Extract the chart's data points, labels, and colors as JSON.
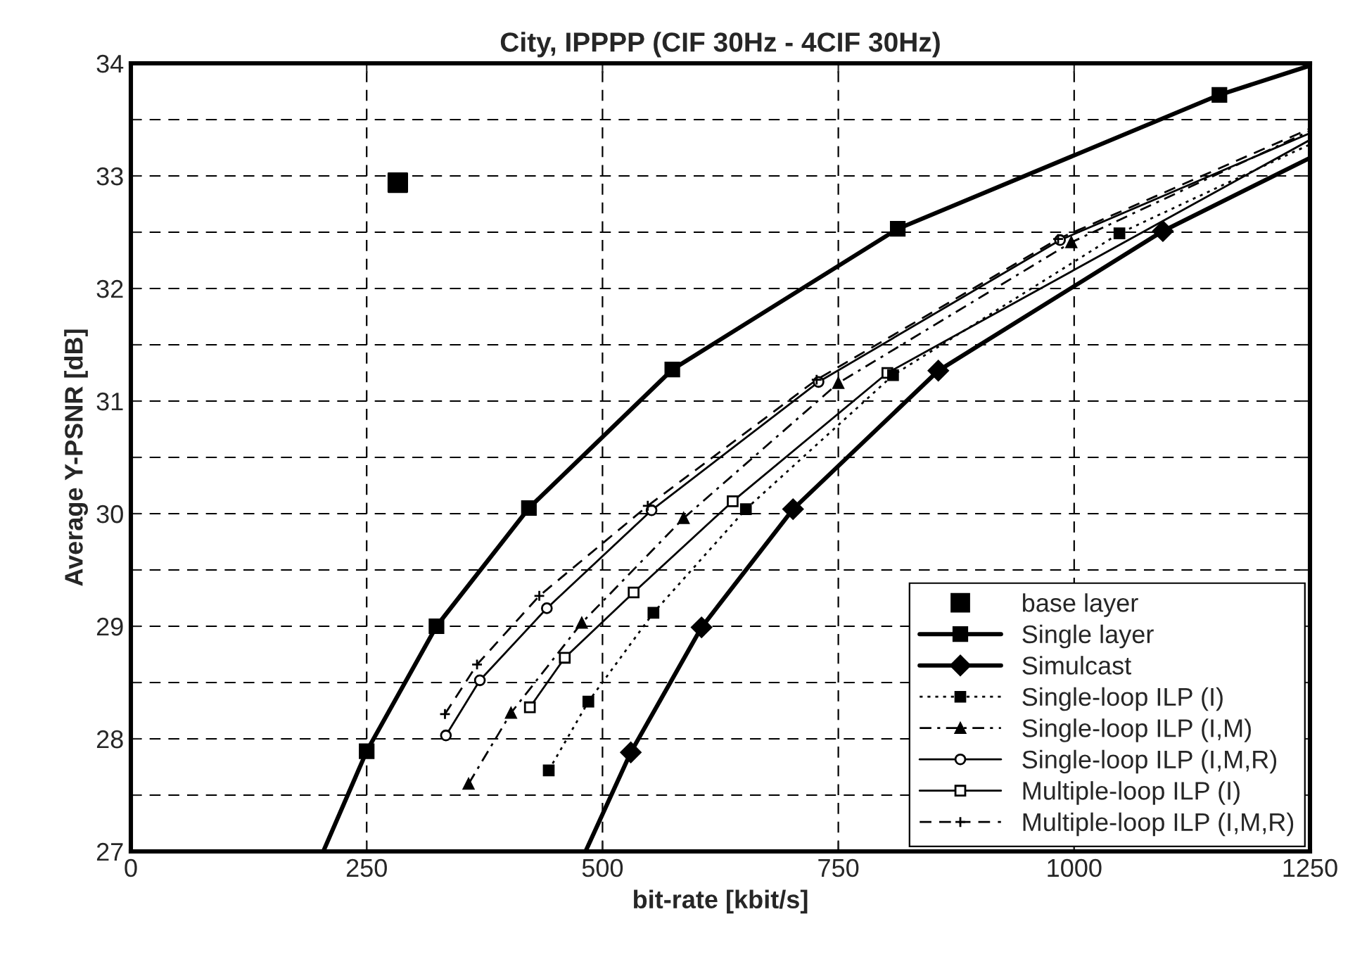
{
  "chart_data": {
    "type": "line",
    "title": "City, IPPPP (CIF 30Hz - 4CIF 30Hz)",
    "xlabel": "bit-rate [kbit/s]",
    "ylabel": "Average Y-PSNR [dB]",
    "xlim": [
      0,
      1250
    ],
    "ylim": [
      27,
      34
    ],
    "xticks": [
      0,
      250,
      500,
      750,
      1000,
      1250
    ],
    "yticks": [
      27,
      {
        "value": 27.5,
        "label": null
      },
      28,
      {
        "value": 28.5,
        "label": null
      },
      29,
      {
        "value": 29.5,
        "label": null
      },
      30,
      {
        "value": 30.5,
        "label": null
      },
      31,
      {
        "value": 31.5,
        "label": null
      },
      32,
      {
        "value": 32.5,
        "label": null
      },
      33,
      {
        "value": 33.5,
        "label": null
      },
      34
    ],
    "grid": true,
    "legend": "bottom right",
    "series": [
      {
        "name": "base layer",
        "type": "scatter",
        "marker": "square",
        "color": "#000000",
        "x": [
          283
        ],
        "values": [
          32.94
        ]
      },
      {
        "name": "Single layer",
        "marker": "square",
        "line_style": "solid",
        "color": "#000000",
        "x": [
          204,
          250,
          324,
          422,
          574,
          813,
          1154,
          1250
        ],
        "values": [
          27,
          27.89,
          29.0,
          30.05,
          31.28,
          32.53,
          33.72,
          33.98
        ]
      },
      {
        "name": "Simulcast",
        "marker": "diamond",
        "line_style": "solid",
        "color": "#000000",
        "x": [
          482,
          530,
          605,
          702,
          856,
          1094,
          1250
        ],
        "values": [
          27,
          27.88,
          28.99,
          30.04,
          31.27,
          32.51,
          33.16
        ]
      },
      {
        "name": "Single-loop ILP (I)",
        "marker": "square",
        "line_style": "dotted",
        "color": "#000000",
        "x": [
          443,
          485,
          554,
          652,
          808,
          1048,
          1250
        ],
        "values": [
          27.72,
          28.33,
          29.12,
          30.04,
          31.23,
          32.49,
          33.28
        ]
      },
      {
        "name": "Single-loop ILP (I,M)",
        "marker": "triangle",
        "line_style": "dashdot",
        "color": "#000000",
        "x": [
          358,
          403,
          478,
          586,
          750,
          997,
          1250
        ],
        "values": [
          27.6,
          28.23,
          29.03,
          29.96,
          31.16,
          32.41,
          33.4
        ]
      },
      {
        "name": "Single-loop ILP (I,M,R)",
        "marker": "circle",
        "line_style": "solid",
        "color": "#000000",
        "x": [
          334,
          370,
          441,
          552,
          729,
          985,
          1250
        ],
        "values": [
          28.03,
          28.52,
          29.16,
          30.03,
          31.17,
          32.43,
          33.38
        ]
      },
      {
        "name": "Multiple-loop ILP (I)",
        "marker": "square",
        "line_style": "solid",
        "color": "#000000",
        "x": [
          423,
          460,
          533,
          638,
          802,
          1250
        ],
        "values": [
          28.28,
          28.72,
          29.3,
          30.11,
          31.25,
          33.32
        ]
      },
      {
        "name": "Multiple-loop ILP (I,M,R)",
        "marker": "cross",
        "line_style": "dashed",
        "color": "#000000",
        "x": [
          333,
          367,
          433,
          548,
          727,
          983,
          1250
        ],
        "values": [
          28.22,
          28.66,
          29.27,
          30.07,
          31.19,
          32.44,
          33.42
        ]
      }
    ]
  }
}
